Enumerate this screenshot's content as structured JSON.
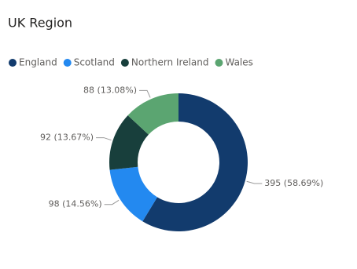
{
  "chart_data": {
    "type": "donut",
    "title": "UK Region",
    "categories": [
      "England",
      "Scotland",
      "Northern Ireland",
      "Wales"
    ],
    "values": [
      395,
      98,
      92,
      88
    ],
    "value_labels": [
      "395 (58.69%)",
      "98 (14.56%)",
      "92 (13.67%)",
      "88 (13.08%)"
    ],
    "colors": [
      "#123b6d",
      "#2389f0",
      "#183f3c",
      "#5ba571"
    ],
    "legend": "top-left"
  }
}
